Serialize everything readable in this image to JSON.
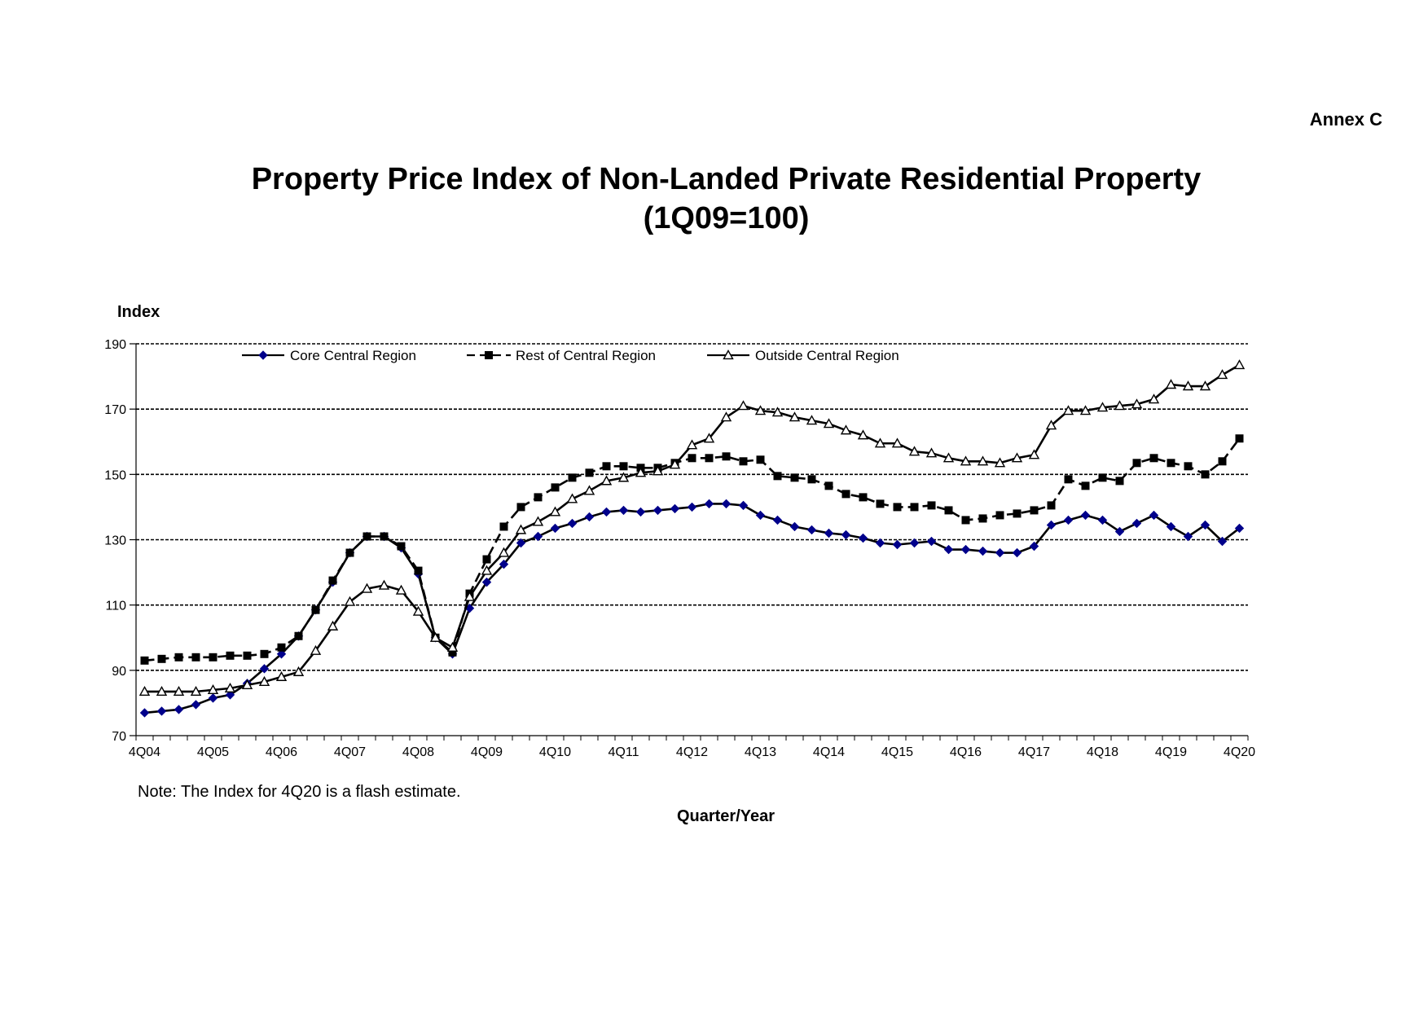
{
  "annex": "Annex C",
  "chart_data": {
    "type": "line",
    "title": "Property Price Index of Non-Landed Private Residential Property",
    "subtitle": "(1Q09=100)",
    "ylabel": "Index",
    "xlabel": "Quarter/Year",
    "note": "Note: The Index for 4Q20 is a flash estimate.",
    "ylim": [
      70,
      190
    ],
    "yticks": [
      70,
      90,
      110,
      130,
      150,
      170,
      190
    ],
    "grid": "horizontal dashed",
    "legend": "top",
    "xticks": [
      "4Q04",
      "4Q05",
      "4Q06",
      "4Q07",
      "4Q08",
      "4Q09",
      "4Q10",
      "4Q11",
      "4Q12",
      "4Q13",
      "4Q14",
      "4Q15",
      "4Q16",
      "4Q17",
      "4Q18",
      "4Q19",
      "4Q20"
    ],
    "categories": [
      "4Q04",
      "1Q05",
      "2Q05",
      "3Q05",
      "4Q05",
      "1Q06",
      "2Q06",
      "3Q06",
      "4Q06",
      "1Q07",
      "2Q07",
      "3Q07",
      "4Q07",
      "1Q08",
      "2Q08",
      "3Q08",
      "4Q08",
      "1Q09",
      "2Q09",
      "3Q09",
      "4Q09",
      "1Q10",
      "2Q10",
      "3Q10",
      "4Q10",
      "1Q11",
      "2Q11",
      "3Q11",
      "4Q11",
      "1Q12",
      "2Q12",
      "3Q12",
      "4Q12",
      "1Q13",
      "2Q13",
      "3Q13",
      "4Q13",
      "1Q14",
      "2Q14",
      "3Q14",
      "4Q14",
      "1Q15",
      "2Q15",
      "3Q15",
      "4Q15",
      "1Q16",
      "2Q16",
      "3Q16",
      "4Q16",
      "1Q17",
      "2Q17",
      "3Q17",
      "4Q17",
      "1Q18",
      "2Q18",
      "3Q18",
      "4Q18",
      "1Q19",
      "2Q19",
      "3Q19",
      "4Q19",
      "1Q20",
      "2Q20",
      "3Q20",
      "4Q20"
    ],
    "series": [
      {
        "name": "Core Central Region",
        "color": "#00008b",
        "marker": "diamond",
        "dash": "solid",
        "values": [
          77.0,
          77.5,
          78.0,
          79.5,
          81.5,
          82.5,
          86.0,
          90.5,
          95.0,
          100.5,
          108.5,
          117.0,
          126.0,
          131.0,
          131.0,
          127.5,
          119.5,
          100.0,
          95.0,
          109.0,
          117.0,
          122.5,
          129.0,
          131.0,
          133.5,
          135.0,
          137.0,
          138.5,
          139.0,
          138.5,
          139.0,
          139.5,
          140.0,
          141.0,
          141.0,
          140.5,
          137.5,
          136.0,
          134.0,
          133.0,
          132.0,
          131.5,
          130.5,
          129.0,
          128.5,
          129.0,
          129.5,
          127.0,
          127.0,
          126.5,
          126.0,
          126.0,
          128.0,
          134.5,
          136.0,
          137.5,
          136.0,
          132.5,
          135.0,
          137.5,
          134.0,
          131.0,
          134.5,
          129.5,
          133.5
        ]
      },
      {
        "name": "Rest of Central Region",
        "color": "#000000",
        "marker": "square",
        "dash": "dashed",
        "values": [
          93.0,
          93.5,
          94.0,
          94.0,
          94.0,
          94.5,
          94.5,
          95.0,
          97.0,
          100.5,
          108.5,
          117.5,
          126.0,
          131.0,
          131.0,
          128.0,
          120.5,
          100.0,
          95.5,
          113.5,
          124.0,
          134.0,
          140.0,
          143.0,
          146.0,
          149.0,
          150.5,
          152.5,
          152.5,
          152.0,
          152.0,
          153.5,
          155.0,
          155.0,
          155.5,
          154.0,
          154.5,
          149.5,
          149.0,
          148.5,
          146.5,
          144.0,
          143.0,
          141.0,
          140.0,
          140.0,
          140.5,
          139.0,
          136.0,
          136.5,
          137.5,
          138.0,
          139.0,
          140.5,
          148.5,
          146.5,
          149.0,
          148.0,
          153.5,
          155.0,
          153.5,
          152.5,
          150.0,
          154.0,
          161.0
        ]
      },
      {
        "name": "Outside Central Region",
        "color": "#000000",
        "marker": "triangle",
        "dash": "solid",
        "values": [
          83.5,
          83.5,
          83.5,
          83.5,
          84.0,
          84.5,
          85.5,
          86.5,
          88.0,
          89.5,
          96.0,
          103.5,
          111.0,
          115.0,
          116.0,
          114.5,
          108.0,
          100.0,
          97.0,
          112.5,
          120.5,
          126.0,
          133.0,
          135.5,
          138.5,
          142.5,
          145.0,
          148.0,
          149.0,
          150.5,
          151.0,
          153.0,
          159.0,
          161.0,
          167.5,
          171.0,
          169.5,
          169.0,
          167.5,
          166.5,
          165.5,
          163.5,
          162.0,
          159.5,
          159.5,
          157.0,
          156.5,
          155.0,
          154.0,
          154.0,
          153.5,
          155.0,
          156.0,
          165.0,
          169.5,
          169.5,
          170.5,
          171.0,
          171.5,
          173.0,
          177.5,
          177.0,
          177.0,
          180.5,
          183.5
        ]
      }
    ]
  }
}
